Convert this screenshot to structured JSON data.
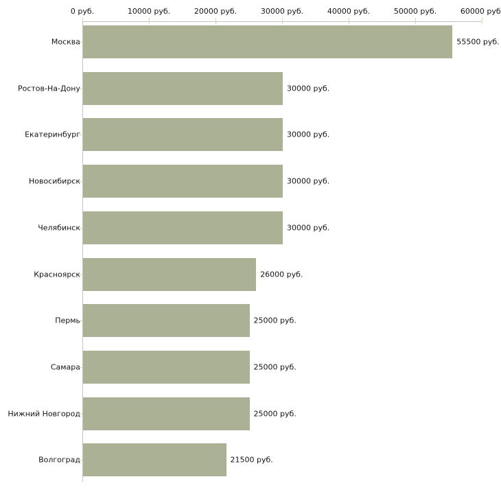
{
  "chart_data": {
    "type": "bar",
    "orientation": "horizontal",
    "title": "",
    "xlabel": "",
    "ylabel": "",
    "unit": "руб.",
    "categories": [
      "Москва",
      "Ростов-На-Дону",
      "Екатеринбург",
      "Новосибирск",
      "Челябинск",
      "Красноярск",
      "Пермь",
      "Самара",
      "Нижний Новгород",
      "Волгоград"
    ],
    "values": [
      55500,
      30000,
      30000,
      30000,
      30000,
      26000,
      25000,
      25000,
      25000,
      21500
    ],
    "value_labels": [
      "55500 руб.",
      "30000 руб.",
      "30000 руб.",
      "30000 руб.",
      "30000 руб.",
      "26000 руб.",
      "25000 руб.",
      "25000 руб.",
      "25000 руб.",
      "21500 руб."
    ],
    "x_ticks": [
      {
        "value": 0,
        "label": "0 руб."
      },
      {
        "value": 10000,
        "label": "10000 руб."
      },
      {
        "value": 20000,
        "label": "20000 руб."
      },
      {
        "value": 30000,
        "label": "30000 руб."
      },
      {
        "value": 40000,
        "label": "40000 руб."
      },
      {
        "value": 50000,
        "label": "50000 руб."
      },
      {
        "value": 60000,
        "label": "60000 руб."
      }
    ],
    "xlim": [
      0,
      60000
    ],
    "grid": false,
    "legend": false,
    "colors": {
      "bar": "#abb194",
      "axis_line": "#c3c3c3",
      "tick": "#d9dab5",
      "text": "#141414"
    }
  }
}
